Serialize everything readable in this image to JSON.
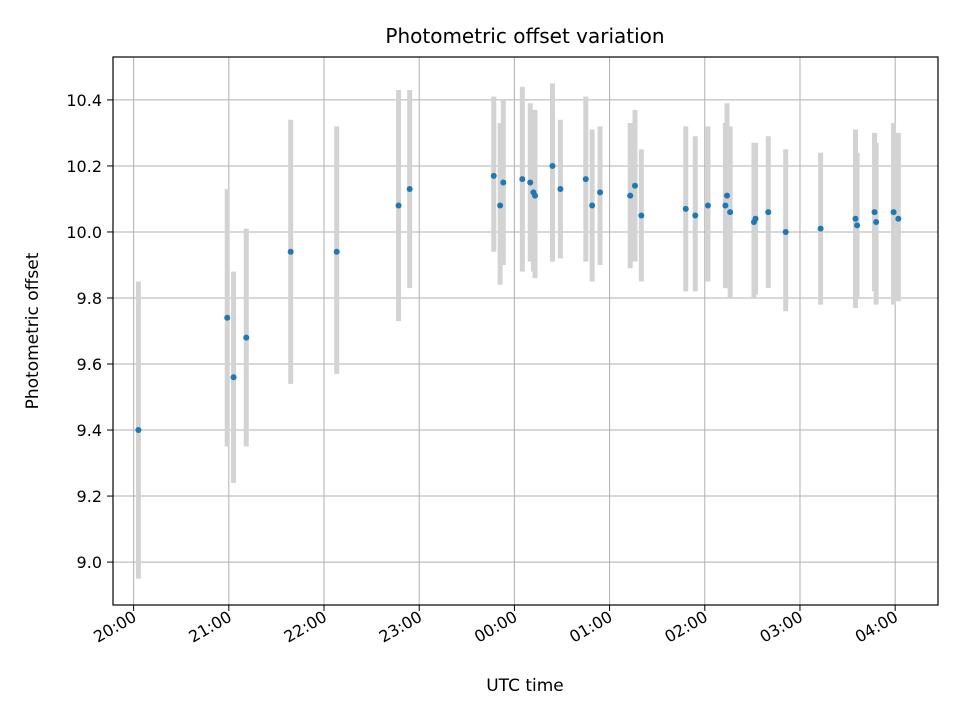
{
  "chart_data": {
    "type": "scatter",
    "title": "Photometric offset variation",
    "xlabel": "UTC time",
    "ylabel": "Photometric offset",
    "grid": true,
    "xlim": [
      "19:47",
      "04:27"
    ],
    "ylim": [
      8.87,
      10.53
    ],
    "x_ticks": [
      "20:00",
      "21:00",
      "22:00",
      "23:00",
      "00:00",
      "01:00",
      "02:00",
      "03:00",
      "04:00"
    ],
    "y_ticks": [
      "9.0",
      "9.2",
      "9.4",
      "9.6",
      "9.8",
      "10.0",
      "10.2",
      "10.4"
    ],
    "colors": {
      "points": "#1f77b4",
      "error_bars": "#d3d3d3",
      "grid": "#b0b0b0"
    },
    "points": [
      {
        "x": "20:03",
        "y": 9.4,
        "ylo": 8.95,
        "yhi": 9.85
      },
      {
        "x": "20:59",
        "y": 9.74,
        "ylo": 9.35,
        "yhi": 10.13
      },
      {
        "x": "21:03",
        "y": 9.56,
        "ylo": 9.24,
        "yhi": 9.88
      },
      {
        "x": "21:11",
        "y": 9.68,
        "ylo": 9.35,
        "yhi": 10.01
      },
      {
        "x": "21:39",
        "y": 9.94,
        "ylo": 9.54,
        "yhi": 10.34
      },
      {
        "x": "22:08",
        "y": 9.94,
        "ylo": 9.57,
        "yhi": 10.32
      },
      {
        "x": "22:47",
        "y": 10.08,
        "ylo": 9.73,
        "yhi": 10.43
      },
      {
        "x": "22:54",
        "y": 10.13,
        "ylo": 9.83,
        "yhi": 10.43
      },
      {
        "x": "23:47",
        "y": 10.17,
        "ylo": 9.94,
        "yhi": 10.41
      },
      {
        "x": "23:51",
        "y": 10.08,
        "ylo": 9.84,
        "yhi": 10.33
      },
      {
        "x": "23:53",
        "y": 10.15,
        "ylo": 9.9,
        "yhi": 10.4
      },
      {
        "x": "00:05",
        "y": 10.16,
        "ylo": 9.88,
        "yhi": 10.44
      },
      {
        "x": "00:10",
        "y": 10.15,
        "ylo": 9.91,
        "yhi": 10.39
      },
      {
        "x": "00:12",
        "y": 10.12,
        "ylo": 9.88,
        "yhi": 10.36
      },
      {
        "x": "00:13",
        "y": 10.11,
        "ylo": 9.86,
        "yhi": 10.37
      },
      {
        "x": "00:24",
        "y": 10.2,
        "ylo": 9.91,
        "yhi": 10.45
      },
      {
        "x": "00:29",
        "y": 10.13,
        "ylo": 9.92,
        "yhi": 10.34
      },
      {
        "x": "00:45",
        "y": 10.16,
        "ylo": 9.91,
        "yhi": 10.41
      },
      {
        "x": "00:49",
        "y": 10.08,
        "ylo": 9.85,
        "yhi": 10.31
      },
      {
        "x": "00:54",
        "y": 10.12,
        "ylo": 9.9,
        "yhi": 10.32
      },
      {
        "x": "01:13",
        "y": 10.11,
        "ylo": 9.89,
        "yhi": 10.33
      },
      {
        "x": "01:16",
        "y": 10.14,
        "ylo": 9.91,
        "yhi": 10.37
      },
      {
        "x": "01:20",
        "y": 10.05,
        "ylo": 9.85,
        "yhi": 10.25
      },
      {
        "x": "01:48",
        "y": 10.07,
        "ylo": 9.82,
        "yhi": 10.32
      },
      {
        "x": "01:54",
        "y": 10.05,
        "ylo": 9.82,
        "yhi": 10.29
      },
      {
        "x": "02:02",
        "y": 10.08,
        "ylo": 9.85,
        "yhi": 10.32
      },
      {
        "x": "02:13",
        "y": 10.08,
        "ylo": 9.83,
        "yhi": 10.33
      },
      {
        "x": "02:14",
        "y": 10.11,
        "ylo": 9.83,
        "yhi": 10.39
      },
      {
        "x": "02:16",
        "y": 10.06,
        "ylo": 9.8,
        "yhi": 10.32
      },
      {
        "x": "02:31",
        "y": 10.03,
        "ylo": 9.8,
        "yhi": 10.27
      },
      {
        "x": "02:32",
        "y": 10.04,
        "ylo": 9.81,
        "yhi": 10.27
      },
      {
        "x": "02:40",
        "y": 10.06,
        "ylo": 9.83,
        "yhi": 10.29
      },
      {
        "x": "02:51",
        "y": 10.0,
        "ylo": 9.76,
        "yhi": 10.25
      },
      {
        "x": "03:13",
        "y": 10.01,
        "ylo": 9.78,
        "yhi": 10.24
      },
      {
        "x": "03:35",
        "y": 10.04,
        "ylo": 9.77,
        "yhi": 10.31
      },
      {
        "x": "03:36",
        "y": 10.02,
        "ylo": 9.8,
        "yhi": 10.24
      },
      {
        "x": "03:47",
        "y": 10.06,
        "ylo": 9.82,
        "yhi": 10.3
      },
      {
        "x": "03:48",
        "y": 10.03,
        "ylo": 9.78,
        "yhi": 10.27
      },
      {
        "x": "03:59",
        "y": 10.06,
        "ylo": 9.78,
        "yhi": 10.33
      },
      {
        "x": "04:02",
        "y": 10.04,
        "ylo": 9.79,
        "yhi": 10.3
      }
    ]
  }
}
